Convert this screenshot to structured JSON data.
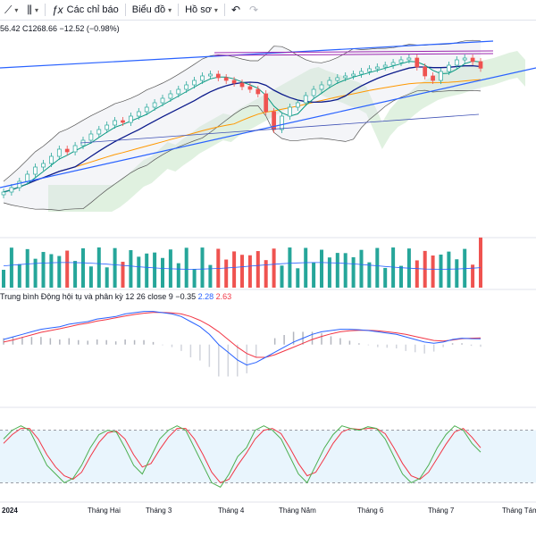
{
  "toolbar": {
    "indicators_label": "Các chỉ báo",
    "chart_label": "Biểu đồ",
    "profile_label": "Hồ sơ"
  },
  "legend": {
    "ohlc_text": "56.42  C1268.66  −12.52 (−0.98%)",
    "macd_title": "Trung bình Động hội tụ và phân kỳ 12 26 close 9",
    "macd_hist": "−0.35",
    "macd_line": "2.28",
    "macd_signal": "2.63"
  },
  "colors": {
    "up": "#26a69a",
    "down": "#ef5350",
    "macd_line": "#2962ff",
    "signal_line": "#f23645",
    "trendline": "#2962ff",
    "band": "#b2b5be",
    "cloud": "#a5d6a7"
  },
  "chart_data": {
    "type": "line",
    "x_tick_labels": [
      "2024",
      "Tháng Hai",
      "Tháng 3",
      "Tháng 4",
      "Tháng Năm",
      "Tháng 6",
      "Tháng 7",
      "Tháng Tám"
    ],
    "price_close": [
      1130,
      1135,
      1142,
      1150,
      1158,
      1162,
      1170,
      1178,
      1175,
      1182,
      1188,
      1195,
      1200,
      1205,
      1210,
      1208,
      1215,
      1220,
      1225,
      1230,
      1235,
      1240,
      1245,
      1250,
      1255,
      1260,
      1262,
      1258,
      1255,
      1252,
      1248,
      1245,
      1240,
      1220,
      1200,
      1215,
      1225,
      1230,
      1238,
      1245,
      1250,
      1255,
      1258,
      1260,
      1262,
      1265,
      1268,
      1270,
      1272,
      1275,
      1278,
      1280,
      1270,
      1260,
      1255,
      1265,
      1272,
      1278,
      1280,
      1276,
      1268.66
    ],
    "macd_line": [
      2,
      3,
      4,
      5,
      6,
      6.5,
      7,
      8,
      8.5,
      9,
      10,
      10.5,
      11,
      12,
      12.5,
      13,
      13,
      12.5,
      12,
      11,
      9,
      7,
      4,
      0,
      -3,
      -6,
      -8,
      -7,
      -5,
      -3,
      -1,
      1,
      2.5,
      4,
      5,
      5.5,
      6,
      6,
      5.8,
      5.5,
      5,
      4.5,
      4,
      3,
      2,
      1,
      0.5,
      1,
      2,
      2.5,
      2.3,
      2.28
    ],
    "signal_line": [
      1,
      1.8,
      2.8,
      3.8,
      4.8,
      5.5,
      6.2,
      7,
      7.8,
      8.4,
      9.2,
      9.8,
      10.5,
      11.2,
      11.8,
      12.3,
      12.6,
      12.6,
      12.4,
      12,
      11,
      9.5,
      7.5,
      5,
      2,
      -1,
      -3.5,
      -5,
      -5,
      -4,
      -2.5,
      -1,
      0.5,
      2,
      3.2,
      4.2,
      5,
      5.4,
      5.6,
      5.6,
      5.4,
      5,
      4.6,
      4,
      3.2,
      2.4,
      1.6,
      1.4,
      1.8,
      2.3,
      2.5,
      2.63
    ],
    "stoch_k": [
      70,
      80,
      85,
      80,
      60,
      40,
      30,
      20,
      25,
      40,
      60,
      75,
      80,
      78,
      60,
      40,
      30,
      50,
      70,
      80,
      85,
      80,
      60,
      40,
      20,
      15,
      30,
      50,
      60,
      80,
      85,
      80,
      70,
      50,
      30,
      20,
      40,
      60,
      75,
      85,
      82,
      80,
      84,
      82,
      70,
      50,
      30,
      20,
      25,
      40,
      60,
      75,
      85,
      80,
      65,
      55
    ],
    "stoch_d": [
      65,
      75,
      82,
      82,
      70,
      52,
      38,
      28,
      24,
      32,
      50,
      66,
      77,
      79,
      70,
      52,
      38,
      42,
      58,
      72,
      82,
      82,
      70,
      52,
      32,
      20,
      24,
      40,
      54,
      70,
      80,
      82,
      76,
      60,
      42,
      28,
      32,
      48,
      65,
      78,
      82,
      81,
      82,
      82,
      76,
      60,
      42,
      28,
      24,
      32,
      48,
      64,
      78,
      82,
      72,
      60
    ],
    "stoch_levels": [
      80,
      20
    ]
  }
}
